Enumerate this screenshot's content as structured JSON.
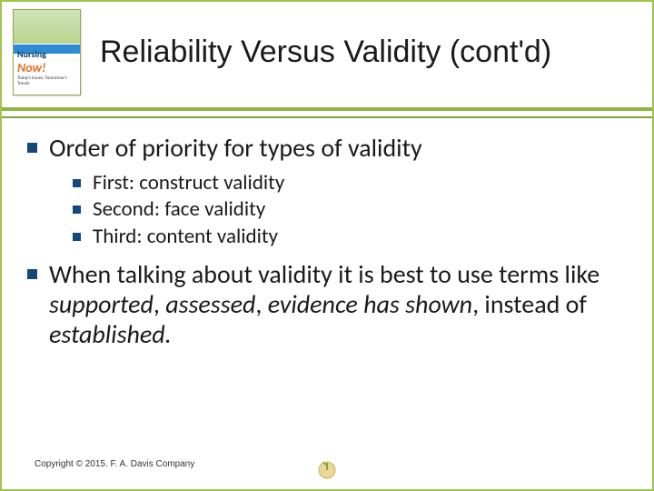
{
  "colors": {
    "border": "#9fc54a",
    "divider_top": "#8fb63f",
    "divider_bottom": "#7fa637",
    "bullet": "#14487a",
    "title": "#1a1a1a",
    "body": "#1a1a1a"
  },
  "book": {
    "line1": "Nursing",
    "line2": "Now!",
    "sub": "Today's Issues, Tomorrow's Trends"
  },
  "title": "Reliability Versus Validity (cont'd)",
  "bullets": [
    {
      "text": "Order of priority for types of validity",
      "children": [
        "First: construct validity",
        "Second: face validity",
        "Third: content validity"
      ]
    },
    {
      "html": "When talking about validity it is best to use terms like <span class=\"italic\">supported</span>, <span class=\"italic\">assessed</span>, <span class=\"italic\">evidence has shown</span>, instead of <span class=\"italic\">established.</span>"
    }
  ],
  "copyright": "Copyright © 2015. F. A. Davis Company"
}
